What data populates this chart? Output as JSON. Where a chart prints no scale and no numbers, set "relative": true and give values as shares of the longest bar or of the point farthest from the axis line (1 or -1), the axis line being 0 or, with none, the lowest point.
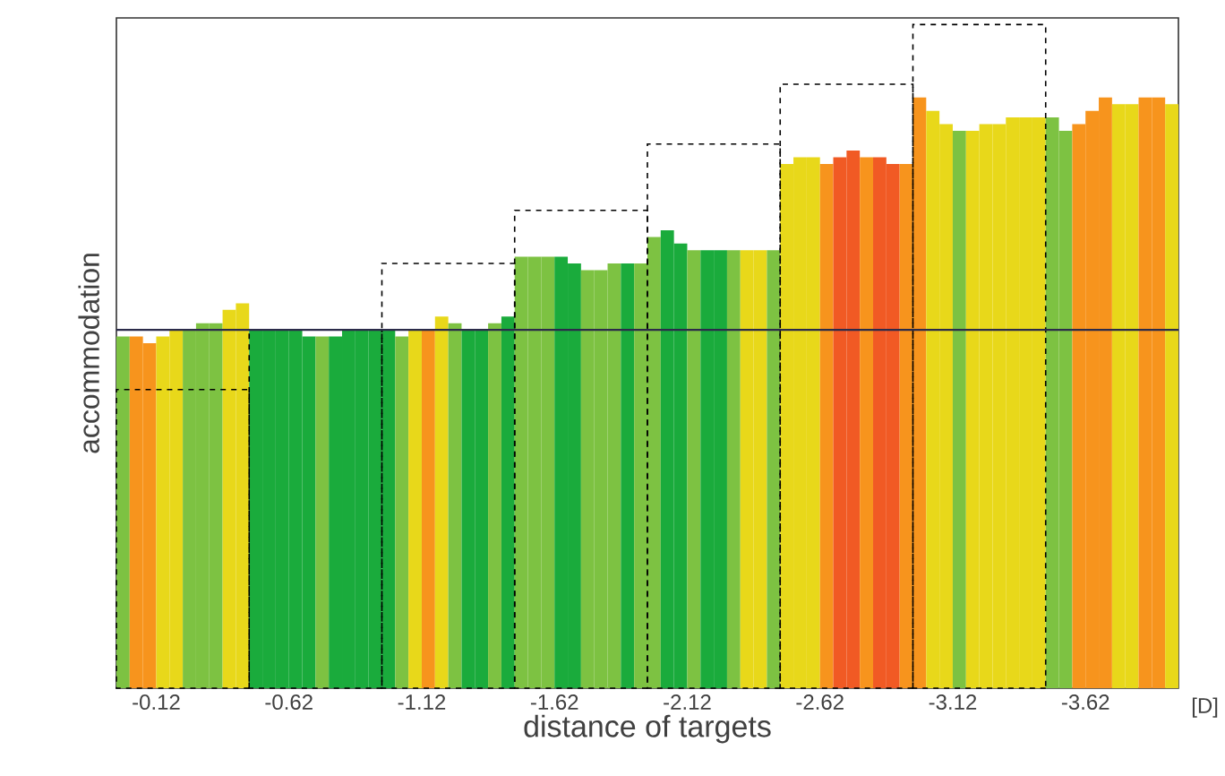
{
  "chart_data": {
    "type": "bar",
    "relative": true,
    "xlabel": "distance of targets",
    "ylabel": "accommodation",
    "annotations": [
      "[D]"
    ],
    "xlim": [
      0.03,
      -3.97
    ],
    "xticks": [
      -0.12,
      -0.62,
      -1.12,
      -1.62,
      -2.12,
      -2.62,
      -3.12,
      -3.62
    ],
    "ref_lines": [
      {
        "axis": "y",
        "value": 0.54,
        "color": "#2b2b4a"
      }
    ],
    "series": [
      {
        "type": "bar",
        "x": [
          0.005,
          -0.045,
          -0.095,
          -0.145,
          -0.195,
          -0.245,
          -0.295,
          -0.345,
          -0.395,
          -0.445,
          -0.495,
          -0.545,
          -0.595,
          -0.645,
          -0.695,
          -0.745,
          -0.795,
          -0.845,
          -0.895,
          -0.945,
          -0.995,
          -1.045,
          -1.095,
          -1.145,
          -1.195,
          -1.245,
          -1.295,
          -1.345,
          -1.395,
          -1.445,
          -1.495,
          -1.545,
          -1.595,
          -1.645,
          -1.695,
          -1.745,
          -1.795,
          -1.845,
          -1.895,
          -1.945,
          -1.995,
          -2.045,
          -2.095,
          -2.145,
          -2.195,
          -2.245,
          -2.295,
          -2.345,
          -2.395,
          -2.445,
          -2.495,
          -2.545,
          -2.595,
          -2.645,
          -2.695,
          -2.745,
          -2.795,
          -2.845,
          -2.895,
          -2.945,
          -2.995,
          -3.045,
          -3.095,
          -3.145,
          -3.195,
          -3.245,
          -3.295,
          -3.345,
          -3.395,
          -3.445,
          -3.495,
          -3.545,
          -3.595,
          -3.645,
          -3.695,
          -3.745,
          -3.795,
          -3.845,
          -3.895,
          -3.945
        ],
        "values": [
          0.53,
          0.53,
          0.52,
          0.53,
          0.54,
          0.54,
          0.55,
          0.55,
          0.57,
          0.58,
          0.54,
          0.54,
          0.54,
          0.54,
          0.53,
          0.53,
          0.53,
          0.54,
          0.54,
          0.54,
          0.54,
          0.53,
          0.54,
          0.54,
          0.56,
          0.55,
          0.54,
          0.54,
          0.55,
          0.56,
          0.65,
          0.65,
          0.65,
          0.65,
          0.64,
          0.63,
          0.63,
          0.64,
          0.64,
          0.64,
          0.68,
          0.69,
          0.67,
          0.66,
          0.66,
          0.66,
          0.66,
          0.66,
          0.66,
          0.66,
          0.79,
          0.8,
          0.8,
          0.79,
          0.8,
          0.81,
          0.8,
          0.8,
          0.79,
          0.79,
          0.89,
          0.87,
          0.85,
          0.84,
          0.84,
          0.85,
          0.85,
          0.86,
          0.86,
          0.86,
          0.86,
          0.84,
          0.85,
          0.87,
          0.89,
          0.88,
          0.88,
          0.89,
          0.89,
          0.88
        ],
        "colors": [
          "#7dc242",
          "#f7941d",
          "#f7941d",
          "#e8d81a",
          "#e8d81a",
          "#7dc242",
          "#7dc242",
          "#7dc242",
          "#e8d81a",
          "#e8d81a",
          "#1aab3c",
          "#1aab3c",
          "#1aab3c",
          "#1aab3c",
          "#1aab3c",
          "#7dc242",
          "#1aab3c",
          "#1aab3c",
          "#1aab3c",
          "#1aab3c",
          "#1aab3c",
          "#7dc242",
          "#e8d81a",
          "#f7941d",
          "#e8d81a",
          "#7dc242",
          "#1aab3c",
          "#1aab3c",
          "#7dc242",
          "#1aab3c",
          "#7dc242",
          "#7dc242",
          "#7dc242",
          "#1aab3c",
          "#1aab3c",
          "#7dc242",
          "#7dc242",
          "#7dc242",
          "#1aab3c",
          "#7dc242",
          "#7dc242",
          "#1aab3c",
          "#1aab3c",
          "#7dc242",
          "#1aab3c",
          "#1aab3c",
          "#7dc242",
          "#e8d81a",
          "#e8d81a",
          "#7dc242",
          "#e8d81a",
          "#e8d81a",
          "#e8d81a",
          "#f7941d",
          "#f15a24",
          "#f15a24",
          "#f7941d",
          "#f15a24",
          "#f15a24",
          "#f7941d",
          "#f7941d",
          "#e8d81a",
          "#e8d81a",
          "#7dc242",
          "#e8d81a",
          "#e8d81a",
          "#e8d81a",
          "#e8d81a",
          "#e8d81a",
          "#e8d81a",
          "#7dc242",
          "#7dc242",
          "#f7941d",
          "#f7941d",
          "#f7941d",
          "#e8d81a",
          "#e8d81a",
          "#f7941d",
          "#f7941d",
          "#e8d81a"
        ]
      },
      {
        "type": "bar",
        "line_style": "dashed",
        "color": "#000000",
        "x": [
          -0.22,
          -0.72,
          -1.22,
          -1.72,
          -2.22,
          -2.72,
          -3.22
        ],
        "values": [
          0.45,
          0.54,
          0.64,
          0.72,
          0.82,
          0.91,
          1.0
        ]
      }
    ]
  }
}
